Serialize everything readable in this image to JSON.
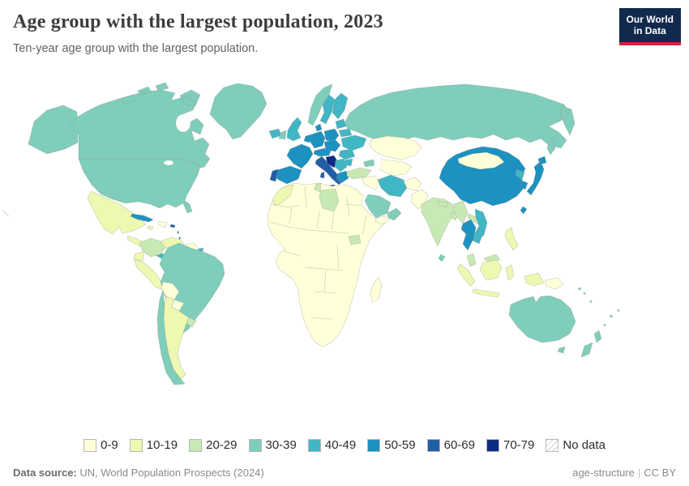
{
  "header": {
    "title": "Age group with the largest population, 2023",
    "subtitle": "Ten-year age group with the largest population.",
    "logo_line1": "Our World",
    "logo_line2": "in Data"
  },
  "legend": {
    "no_data_label": "No data"
  },
  "footer": {
    "source_label": "Data source:",
    "source_text": " UN, World Population Prospects (2024)",
    "right_primary": "age-structure",
    "separator": "|",
    "right_license": "CC BY"
  },
  "brand": {
    "logo_bg": "#12294e",
    "logo_red": "#cf2438",
    "ocean": "#ffffff",
    "border": "#96968a"
  },
  "chart_data": {
    "type": "choropleth_map",
    "title": "Age group with the largest population, 2023",
    "year": 2023,
    "bins": [
      {
        "label": "0-9",
        "color": "#ffffd9"
      },
      {
        "label": "10-19",
        "color": "#edf8b1"
      },
      {
        "label": "20-29",
        "color": "#c7e9b4"
      },
      {
        "label": "30-39",
        "color": "#7fcdbb"
      },
      {
        "label": "40-49",
        "color": "#41b6c4"
      },
      {
        "label": "50-59",
        "color": "#1d91c0"
      },
      {
        "label": "60-69",
        "color": "#225ea8"
      },
      {
        "label": "70-79",
        "color": "#0c2c84"
      }
    ],
    "countries": {
      "united-states": "30-39",
      "canada": "30-39",
      "greenland": "30-39",
      "mexico": "10-19",
      "central-america": "10-19",
      "costa-rica-panama": "40-49",
      "cuba": "50-59",
      "jamaica": "10-19",
      "hispaniola": "0-9",
      "puerto-rico": "60-69",
      "lesser-antilles": "50-59",
      "colombia": "20-29",
      "venezuela": "10-19",
      "guyanas": "0-9",
      "french-guiana": "40-49",
      "ecuador": "10-19",
      "peru": "10-19",
      "brazil": "30-39",
      "bolivia": "0-9",
      "paraguay": "0-9",
      "uruguay": "20-29",
      "argentina": "10-19",
      "chile": "30-39",
      "iceland": "40-49",
      "ireland": "30-39",
      "united-kingdom": "40-49",
      "norway": "30-39",
      "sweden": "40-49",
      "finland": "40-49",
      "baltics": "40-49",
      "belarus": "40-49",
      "ukraine": "40-49",
      "poland": "50-59",
      "germany": "50-59",
      "denmark": "50-59",
      "benelux": "50-59",
      "france": "50-59",
      "spain": "50-59",
      "portugal": "60-69",
      "switzerland-austria": "50-59",
      "czech-slovakia-hungary": "50-59",
      "italy": "60-69",
      "croatia-bosnia-slovenia": "70-79",
      "serbia-albania-macedonia": "40-49",
      "greece": "50-59",
      "romania": "40-49",
      "bulgaria": "40-49",
      "russia": "30-39",
      "kazakhstan": "0-9",
      "central-asia": "0-9",
      "caucasus": "30-39",
      "turkey": "20-29",
      "levant-iraq": "0-9",
      "iran": "40-49",
      "afghanistan": "0-9",
      "pakistan": "0-9",
      "saudi-arabia": "30-39",
      "yemen": "0-9",
      "oman-uae": "30-39",
      "india": "20-29",
      "nepal-bhutan": "20-29",
      "bangladesh": "20-29",
      "sri-lanka": "30-39",
      "china": "50-59",
      "mongolia": "0-9",
      "north-korea": "40-49",
      "south-korea": "50-59",
      "japan": "50-59",
      "taiwan": "50-59",
      "myanmar": "20-29",
      "laos": "20-29",
      "vietnam": "40-49",
      "cambodia": "40-49",
      "thailand": "50-59",
      "malaysia": "20-29",
      "indonesia": "10-19",
      "philippines": "10-19",
      "papua-new-guinea": "0-9",
      "australia": "30-39",
      "new-zealand": "30-39",
      "pacific-islands": "30-39",
      "africa-other": "0-9",
      "morocco": "10-19",
      "tunisia": "20-29",
      "libya": "20-29",
      "south-sudan": "20-29",
      "madagascar": "0-9"
    }
  }
}
